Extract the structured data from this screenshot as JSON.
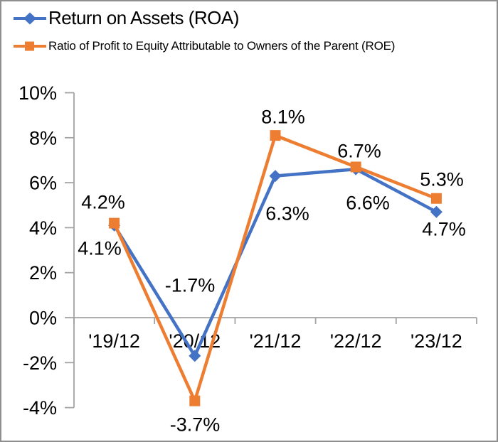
{
  "window": {
    "background": "#ffffff",
    "border_color": "#8f8f8f"
  },
  "legend": [
    {
      "label": "Return on Assets (ROA)",
      "color": "#4472C4",
      "marker": "diamond-icon"
    },
    {
      "label": "Ratio of Profit to Equity Attributable to Owners of the Parent (ROE)",
      "color": "#ED7D31",
      "marker": "square-icon"
    }
  ],
  "chart_data": {
    "type": "line",
    "categories": [
      "'19/12",
      "'20/12",
      "'21/12",
      "'22/12",
      "'23/12"
    ],
    "series": [
      {
        "name": "Return on Assets (ROA)",
        "color": "#4472C4",
        "marker": "diamond",
        "values": [
          4.1,
          -1.7,
          6.3,
          6.6,
          4.7
        ],
        "labels": [
          "4.1%",
          "-1.7%",
          "6.3%",
          "6.6%",
          "4.7%"
        ]
      },
      {
        "name": "Ratio of Profit to Equity Attributable to Owners of the Parent (ROE)",
        "color": "#ED7D31",
        "marker": "square",
        "values": [
          4.2,
          -3.7,
          8.1,
          6.7,
          5.3
        ],
        "labels": [
          "4.2%",
          "-3.7%",
          "8.1%",
          "6.7%",
          "5.3%"
        ]
      }
    ],
    "ylim": [
      -4,
      10
    ],
    "ytick_step": 2,
    "ytick_labels": [
      "10%",
      "8%",
      "6%",
      "4%",
      "2%",
      "0%",
      "-2%",
      "-4%"
    ],
    "grid": false,
    "legend_position": "top-left",
    "axis_color": "#a3a3a3",
    "text_color": "#000000"
  }
}
